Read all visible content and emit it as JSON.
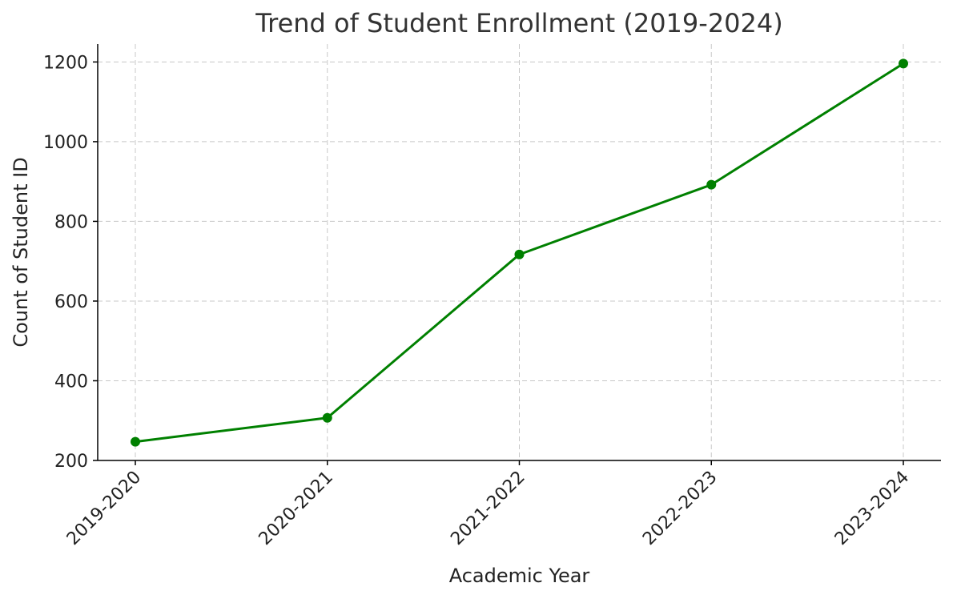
{
  "chart_data": {
    "type": "line",
    "title": "Trend of Student Enrollment (2019-2024)",
    "xlabel": "Academic Year",
    "ylabel": "Count of Student ID",
    "categories": [
      "2019-2020",
      "2020-2021",
      "2021-2022",
      "2022-2023",
      "2023-2024"
    ],
    "series": [
      {
        "values": [
          247,
          307,
          717,
          892,
          1196
        ],
        "color": "#008000",
        "marker": "circle"
      }
    ],
    "ylim": [
      200,
      1245
    ],
    "yticks": [
      200,
      400,
      600,
      800,
      1000,
      1200
    ],
    "grid": true,
    "x_tick_rotation_deg": 45
  }
}
